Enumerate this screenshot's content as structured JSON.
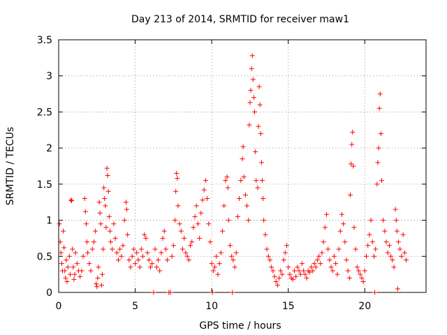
{
  "chart_data": {
    "type": "scatter",
    "title": "Day 213 of 2014, SRMTID for receiver maw1",
    "xlabel": "GPS time / hours",
    "ylabel": "SRMTID / TECUs",
    "xlim": [
      0,
      24
    ],
    "ylim": [
      0,
      3.5
    ],
    "xticks": [
      0,
      5,
      10,
      15,
      20
    ],
    "xtick_labels": [
      "0",
      "5",
      "10",
      "15",
      "20"
    ],
    "yticks": [
      0,
      0.5,
      1,
      1.5,
      2,
      2.5,
      3,
      3.5
    ],
    "ytick_labels": [
      "0",
      "0.5",
      "1",
      "1.5",
      "2",
      "2.5",
      "3",
      "3.5"
    ],
    "grid": true,
    "marker": "+",
    "color": "#ff0000",
    "series": [
      {
        "name": "maw1",
        "points": [
          [
            0.05,
            0.95
          ],
          [
            0.1,
            0.7
          ],
          [
            0.15,
            0.55
          ],
          [
            0.2,
            0.4
          ],
          [
            0.25,
            0.3
          ],
          [
            0.3,
            0.85
          ],
          [
            0.35,
            0.62
          ],
          [
            0.4,
            0.3
          ],
          [
            0.45,
            0.2
          ],
          [
            0.5,
            0.45
          ],
          [
            0.55,
            0.15
          ],
          [
            0.6,
            0.35
          ],
          [
            0.7,
            0.5
          ],
          [
            0.75,
            0.25
          ],
          [
            0.8,
            1.28
          ],
          [
            0.85,
            1.27
          ],
          [
            0.9,
            0.6
          ],
          [
            0.95,
            0.35
          ],
          [
            1.0,
            0.18
          ],
          [
            1.05,
            0.25
          ],
          [
            1.1,
            0.55
          ],
          [
            1.2,
            0.4
          ],
          [
            1.3,
            0.3
          ],
          [
            1.4,
            0.22
          ],
          [
            1.5,
            0.3
          ],
          [
            1.6,
            0.5
          ],
          [
            1.7,
            1.3
          ],
          [
            1.75,
            1.12
          ],
          [
            1.8,
            0.95
          ],
          [
            1.85,
            0.7
          ],
          [
            1.9,
            0.55
          ],
          [
            2.0,
            0.4
          ],
          [
            2.1,
            0.3
          ],
          [
            2.2,
            0.6
          ],
          [
            2.3,
            0.7
          ],
          [
            2.4,
            0.85
          ],
          [
            2.45,
            0.12
          ],
          [
            2.5,
            0.08
          ],
          [
            2.55,
            0.2
          ],
          [
            2.6,
            0.35
          ],
          [
            2.65,
            1.25
          ],
          [
            2.7,
            1.1
          ],
          [
            2.75,
            0.95
          ],
          [
            2.8,
            0.1
          ],
          [
            2.85,
            0.25
          ],
          [
            2.9,
            0.6
          ],
          [
            2.95,
            1.45
          ],
          [
            3.0,
            1.3
          ],
          [
            3.05,
            1.2
          ],
          [
            3.1,
            0.9
          ],
          [
            3.15,
            1.72
          ],
          [
            3.2,
            1.62
          ],
          [
            3.25,
            1.4
          ],
          [
            3.3,
            1.05
          ],
          [
            3.35,
            0.85
          ],
          [
            3.4,
            0.7
          ],
          [
            3.5,
            0.6
          ],
          [
            3.6,
            0.95
          ],
          [
            3.7,
            0.75
          ],
          [
            3.8,
            0.55
          ],
          [
            3.9,
            0.45
          ],
          [
            4.0,
            0.6
          ],
          [
            4.1,
            0.5
          ],
          [
            4.2,
            0.65
          ],
          [
            4.3,
            1.0
          ],
          [
            4.4,
            1.25
          ],
          [
            4.45,
            1.15
          ],
          [
            4.5,
            0.8
          ],
          [
            4.6,
            0.45
          ],
          [
            4.7,
            0.35
          ],
          [
            4.8,
            0.5
          ],
          [
            4.9,
            0.6
          ],
          [
            5.0,
            0.4
          ],
          [
            5.1,
            0.55
          ],
          [
            5.2,
            0.45
          ],
          [
            5.3,
            0.35
          ],
          [
            5.4,
            0.6
          ],
          [
            5.5,
            0.5
          ],
          [
            5.6,
            0.8
          ],
          [
            5.7,
            0.75
          ],
          [
            5.8,
            0.55
          ],
          [
            5.9,
            0.45
          ],
          [
            6.0,
            0.35
          ],
          [
            6.1,
            0.4
          ],
          [
            6.2,
            0.0
          ],
          [
            6.3,
            0.6
          ],
          [
            6.4,
            0.35
          ],
          [
            6.5,
            0.45
          ],
          [
            6.6,
            0.3
          ],
          [
            6.7,
            0.55
          ],
          [
            6.8,
            0.75
          ],
          [
            6.9,
            0.85
          ],
          [
            7.0,
            0.6
          ],
          [
            7.1,
            0.45
          ],
          [
            7.2,
            0.0
          ],
          [
            7.3,
            0.0
          ],
          [
            7.4,
            0.5
          ],
          [
            7.5,
            0.65
          ],
          [
            7.6,
            1.0
          ],
          [
            7.65,
            1.4
          ],
          [
            7.7,
            1.65
          ],
          [
            7.75,
            1.58
          ],
          [
            7.8,
            1.2
          ],
          [
            7.9,
            0.95
          ],
          [
            8.0,
            0.85
          ],
          [
            8.1,
            0.6
          ],
          [
            8.2,
            0.75
          ],
          [
            8.3,
            0.55
          ],
          [
            8.4,
            0.5
          ],
          [
            8.5,
            0.45
          ],
          [
            8.6,
            0.65
          ],
          [
            8.7,
            0.7
          ],
          [
            8.8,
            0.9
          ],
          [
            8.9,
            1.05
          ],
          [
            9.0,
            1.2
          ],
          [
            9.1,
            0.95
          ],
          [
            9.2,
            0.75
          ],
          [
            9.3,
            1.1
          ],
          [
            9.4,
            1.28
          ],
          [
            9.5,
            1.42
          ],
          [
            9.6,
            1.55
          ],
          [
            9.7,
            1.3
          ],
          [
            9.8,
            0.95
          ],
          [
            9.9,
            0.7
          ],
          [
            10.0,
            0.4
          ],
          [
            10.05,
            0.0
          ],
          [
            10.1,
            0.3
          ],
          [
            10.2,
            0.35
          ],
          [
            10.3,
            0.5
          ],
          [
            10.4,
            0.25
          ],
          [
            10.5,
            0.4
          ],
          [
            10.6,
            0.55
          ],
          [
            10.7,
            0.85
          ],
          [
            10.8,
            1.2
          ],
          [
            10.9,
            1.55
          ],
          [
            11.0,
            1.6
          ],
          [
            11.05,
            1.45
          ],
          [
            11.1,
            1.0
          ],
          [
            11.2,
            0.65
          ],
          [
            11.3,
            0.5
          ],
          [
            11.35,
            0.0
          ],
          [
            11.4,
            0.45
          ],
          [
            11.5,
            0.35
          ],
          [
            11.6,
            0.55
          ],
          [
            11.7,
            1.05
          ],
          [
            11.8,
            1.3
          ],
          [
            11.9,
            1.55
          ],
          [
            12.0,
            1.85
          ],
          [
            12.05,
            2.02
          ],
          [
            12.1,
            1.6
          ],
          [
            12.2,
            1.35
          ],
          [
            12.3,
            1.2
          ],
          [
            12.4,
            1.0
          ],
          [
            12.45,
            2.32
          ],
          [
            12.5,
            2.63
          ],
          [
            12.55,
            2.8
          ],
          [
            12.6,
            3.1
          ],
          [
            12.65,
            3.28
          ],
          [
            12.7,
            2.95
          ],
          [
            12.75,
            2.7
          ],
          [
            12.8,
            2.5
          ],
          [
            12.85,
            1.95
          ],
          [
            12.9,
            1.55
          ],
          [
            13.0,
            1.45
          ],
          [
            13.05,
            2.3
          ],
          [
            13.1,
            2.85
          ],
          [
            13.15,
            2.6
          ],
          [
            13.2,
            2.2
          ],
          [
            13.25,
            1.8
          ],
          [
            13.3,
            1.55
          ],
          [
            13.35,
            1.3
          ],
          [
            13.4,
            1.0
          ],
          [
            13.5,
            0.8
          ],
          [
            13.6,
            0.6
          ],
          [
            13.7,
            0.5
          ],
          [
            13.8,
            0.45
          ],
          [
            13.9,
            0.35
          ],
          [
            14.0,
            0.3
          ],
          [
            14.1,
            0.22
          ],
          [
            14.2,
            0.15
          ],
          [
            14.3,
            0.1
          ],
          [
            14.4,
            0.2
          ],
          [
            14.5,
            0.3
          ],
          [
            14.6,
            0.25
          ],
          [
            14.7,
            0.45
          ],
          [
            14.8,
            0.55
          ],
          [
            14.9,
            0.65
          ],
          [
            15.0,
            0.35
          ],
          [
            15.1,
            0.25
          ],
          [
            15.2,
            0.2
          ],
          [
            15.3,
            0.18
          ],
          [
            15.4,
            0.3
          ],
          [
            15.5,
            0.22
          ],
          [
            15.6,
            0.35
          ],
          [
            15.7,
            0.3
          ],
          [
            15.8,
            0.25
          ],
          [
            15.9,
            0.4
          ],
          [
            16.0,
            0.3
          ],
          [
            16.1,
            0.25
          ],
          [
            16.2,
            0.2
          ],
          [
            16.3,
            0.3
          ],
          [
            16.4,
            0.28
          ],
          [
            16.5,
            0.35
          ],
          [
            16.6,
            0.3
          ],
          [
            16.7,
            0.4
          ],
          [
            16.8,
            0.35
          ],
          [
            16.9,
            0.45
          ],
          [
            17.0,
            0.5
          ],
          [
            17.1,
            0.4
          ],
          [
            17.2,
            0.55
          ],
          [
            17.3,
            0.7
          ],
          [
            17.4,
            0.9
          ],
          [
            17.5,
            1.08
          ],
          [
            17.6,
            0.6
          ],
          [
            17.7,
            0.45
          ],
          [
            17.8,
            0.35
          ],
          [
            17.9,
            0.3
          ],
          [
            18.0,
            0.5
          ],
          [
            18.1,
            0.4
          ],
          [
            18.2,
            0.25
          ],
          [
            18.3,
            0.6
          ],
          [
            18.4,
            0.85
          ],
          [
            18.5,
            1.08
          ],
          [
            18.6,
            0.95
          ],
          [
            18.7,
            0.7
          ],
          [
            18.8,
            0.45
          ],
          [
            18.9,
            0.3
          ],
          [
            19.0,
            0.2
          ],
          [
            19.05,
            1.35
          ],
          [
            19.1,
            1.78
          ],
          [
            19.15,
            2.05
          ],
          [
            19.2,
            2.22
          ],
          [
            19.25,
            1.75
          ],
          [
            19.3,
            0.9
          ],
          [
            19.4,
            0.6
          ],
          [
            19.5,
            0.35
          ],
          [
            19.6,
            0.3
          ],
          [
            19.7,
            0.25
          ],
          [
            19.8,
            0.2
          ],
          [
            19.9,
            0.15
          ],
          [
            20.0,
            0.3
          ],
          [
            20.1,
            0.5
          ],
          [
            20.2,
            0.65
          ],
          [
            20.3,
            0.8
          ],
          [
            20.4,
            1.0
          ],
          [
            20.5,
            0.7
          ],
          [
            20.6,
            0.5
          ],
          [
            20.65,
            0.0
          ],
          [
            20.7,
            0.6
          ],
          [
            20.8,
            1.5
          ],
          [
            20.85,
            1.8
          ],
          [
            20.9,
            2.0
          ],
          [
            20.95,
            2.55
          ],
          [
            21.0,
            2.75
          ],
          [
            21.05,
            2.2
          ],
          [
            21.1,
            1.55
          ],
          [
            21.2,
            1.0
          ],
          [
            21.3,
            0.85
          ],
          [
            21.4,
            0.7
          ],
          [
            21.5,
            0.55
          ],
          [
            21.6,
            0.65
          ],
          [
            21.7,
            0.5
          ],
          [
            21.8,
            0.45
          ],
          [
            21.9,
            0.35
          ],
          [
            22.0,
            1.15
          ],
          [
            22.05,
            1.0
          ],
          [
            22.1,
            0.85
          ],
          [
            22.15,
            0.05
          ],
          [
            22.2,
            0.7
          ],
          [
            22.3,
            0.6
          ],
          [
            22.4,
            0.5
          ],
          [
            22.5,
            0.8
          ],
          [
            22.6,
            0.55
          ],
          [
            22.7,
            0.45
          ]
        ]
      }
    ]
  }
}
